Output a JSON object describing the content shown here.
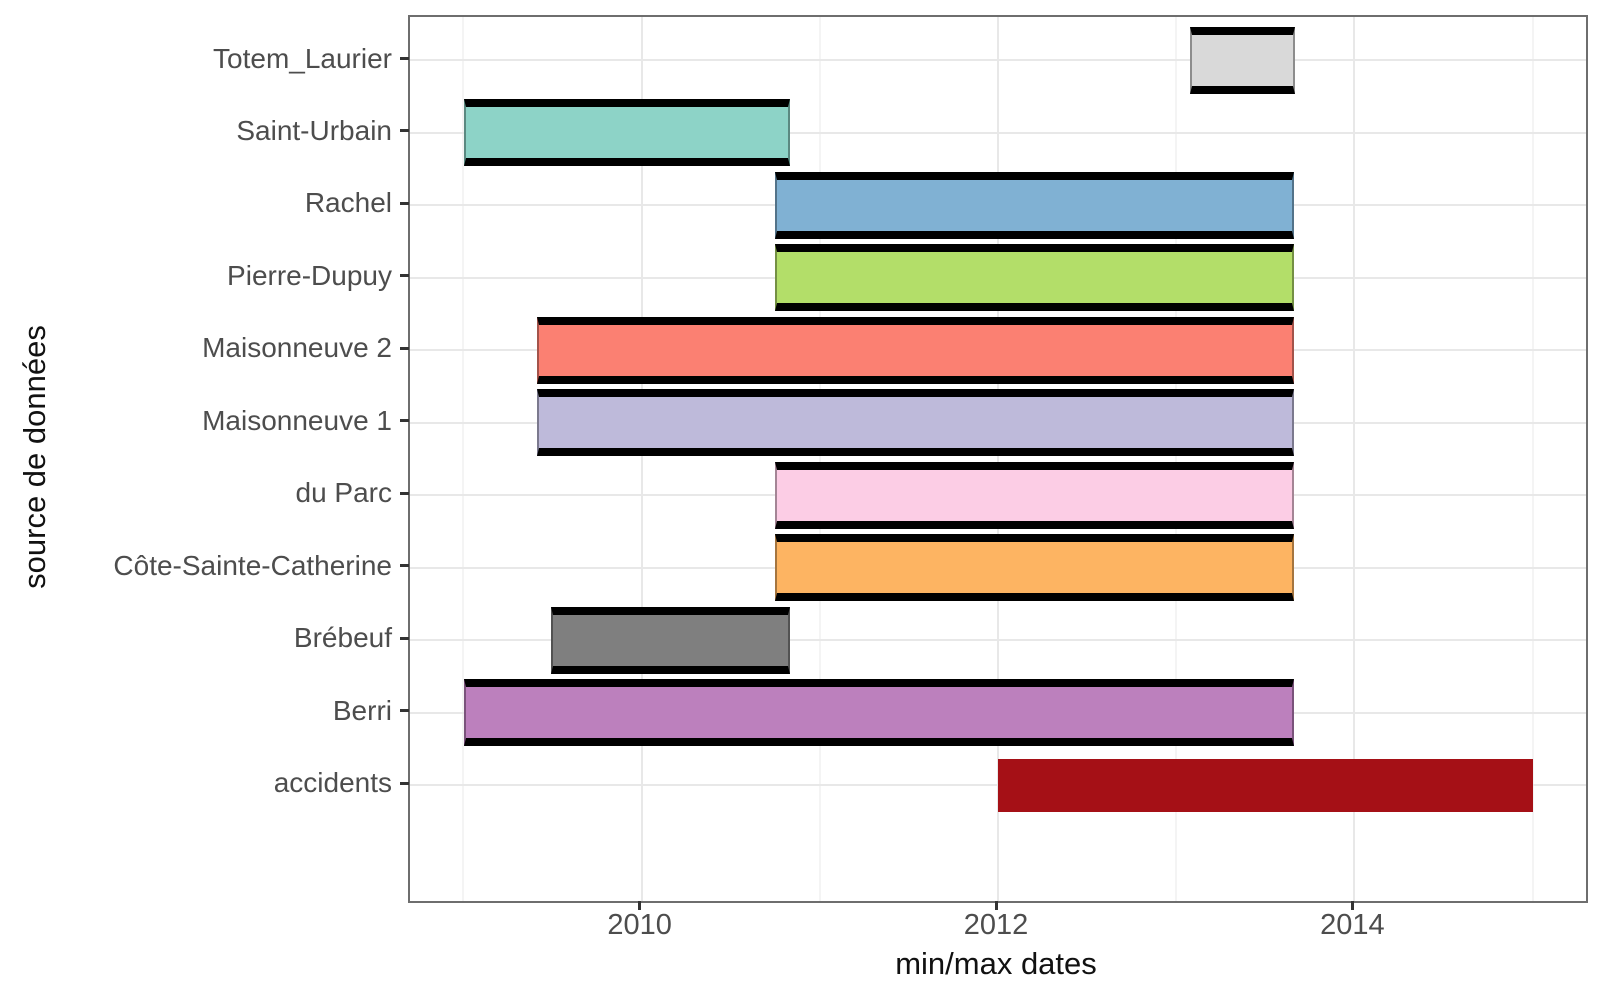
{
  "chart_data": {
    "type": "bar",
    "subtype": "horizontal-range-gantt",
    "title": "",
    "xlabel": "min/max dates",
    "ylabel": "source de données",
    "x_domain": [
      2008.7,
      2015.3
    ],
    "x_major_ticks": [
      {
        "value": 2010,
        "label": "2010"
      },
      {
        "value": 2012,
        "label": "2012"
      },
      {
        "value": 2014,
        "label": "2014"
      }
    ],
    "x_minor_gridlines": [
      2009,
      2011,
      2013,
      2015
    ],
    "grid": true,
    "legend": false,
    "rows": [
      {
        "label": "Totem_Laurier",
        "min": 2013.08,
        "max": 2013.67,
        "fill": "#D9D9D9",
        "crossbar": true
      },
      {
        "label": "Saint-Urbain",
        "min": 2009.0,
        "max": 2010.83,
        "fill": "#8DD3C7",
        "crossbar": true
      },
      {
        "label": "Rachel",
        "min": 2010.75,
        "max": 2013.66,
        "fill": "#80B1D3",
        "crossbar": true
      },
      {
        "label": "Pierre-Dupuy",
        "min": 2010.75,
        "max": 2013.66,
        "fill": "#B3DE69",
        "crossbar": true
      },
      {
        "label": "Maisonneuve 2",
        "min": 2009.41,
        "max": 2013.66,
        "fill": "#FB8072",
        "crossbar": true
      },
      {
        "label": "Maisonneuve 1",
        "min": 2009.41,
        "max": 2013.66,
        "fill": "#BEBADA",
        "crossbar": true
      },
      {
        "label": "du Parc",
        "min": 2010.75,
        "max": 2013.66,
        "fill": "#FCCDE5",
        "crossbar": true
      },
      {
        "label": "Côte-Sainte-Catherine",
        "min": 2010.75,
        "max": 2013.66,
        "fill": "#FDB462",
        "crossbar": true
      },
      {
        "label": "Brébeuf",
        "min": 2009.49,
        "max": 2010.83,
        "fill": "#7F7F7F",
        "crossbar": true
      },
      {
        "label": "Berri",
        "min": 2009.0,
        "max": 2013.66,
        "fill": "#BC80BD",
        "crossbar": true
      },
      {
        "label": "accidents",
        "min": 2012.0,
        "max": 2015.0,
        "fill": "#A51016",
        "crossbar": false
      }
    ],
    "styles": {
      "crossbar_line_color": "#000000",
      "grid_major_color": "#e8e8e8",
      "grid_minor_color": "#f4f4f4",
      "panel_border_color": "#6e6e6e",
      "axis_text_color": "#4d4d4d",
      "axis_title_color": "#111111",
      "background": "#ffffff"
    }
  }
}
